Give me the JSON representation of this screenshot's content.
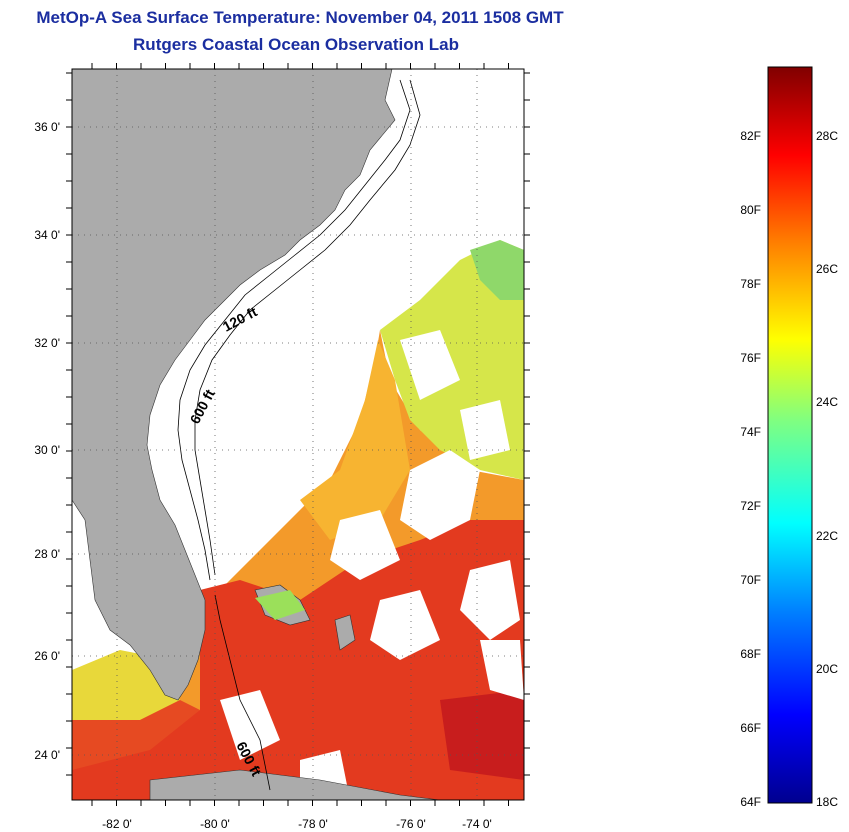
{
  "title": {
    "line1": "MetOp-A Sea Surface Temperature:  November 04, 2011 1508 GMT",
    "line2": "Rutgers Coastal Ocean Observation Lab"
  },
  "map": {
    "latitude_ticks": [
      "36 0'",
      "34 0'",
      "32 0'",
      "30 0'",
      "28 0'",
      "26 0'",
      "24 0'"
    ],
    "longitude_ticks": [
      "-82 0'",
      "-80 0'",
      "-78 0'",
      "-76 0'",
      "-74 0'"
    ],
    "contour_labels": [
      "120 ft",
      "600 ft",
      "600 ft"
    ],
    "colors": {
      "land": "#ababab",
      "cloud": "#ffffff",
      "warm": "#e8341c",
      "mid": "#f59a22",
      "cool": "#b8e052"
    }
  },
  "colorbar": {
    "fahrenheit_labels": [
      "82F",
      "80F",
      "78F",
      "76F",
      "74F",
      "72F",
      "70F",
      "68F",
      "66F",
      "64F"
    ],
    "celsius_labels": [
      "28C",
      "26C",
      "24C",
      "22C",
      "20C",
      "18C"
    ],
    "colors": [
      "#00008f",
      "#0000ff",
      "#0080ff",
      "#00ffff",
      "#80ff80",
      "#ffff00",
      "#ff8000",
      "#ff0000",
      "#800000"
    ]
  }
}
